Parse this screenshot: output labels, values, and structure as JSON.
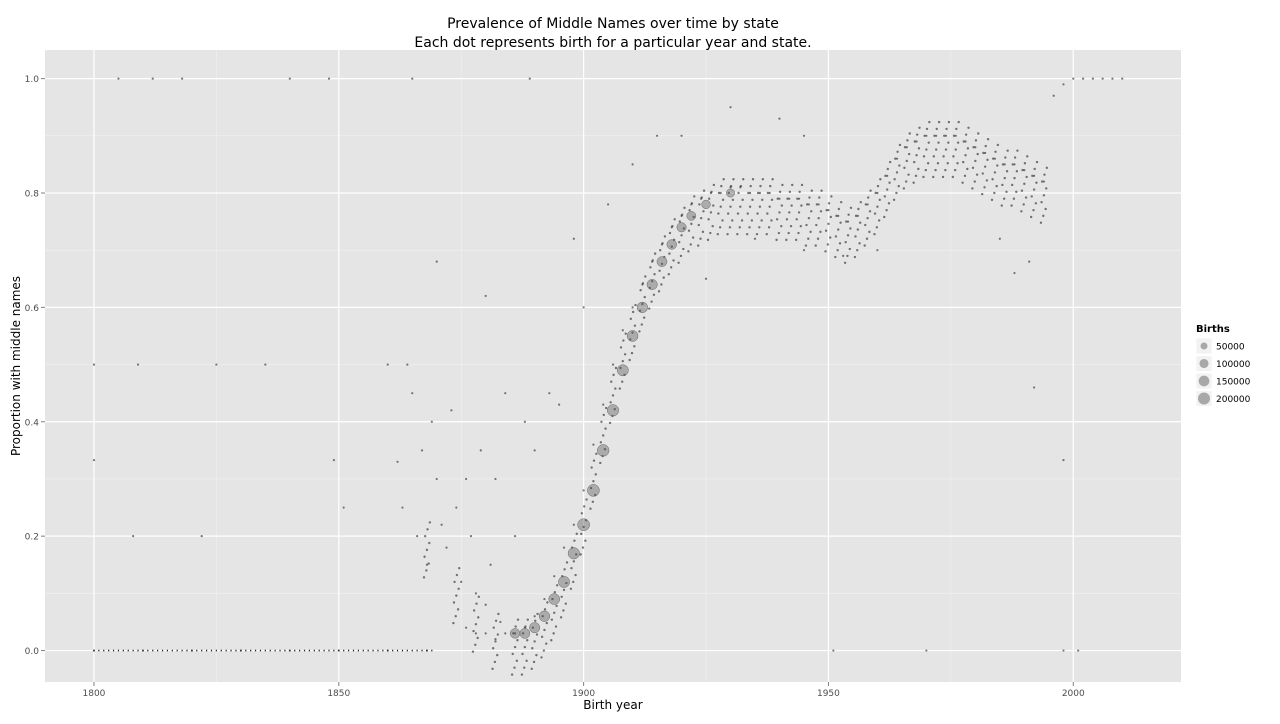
{
  "chart_data": {
    "type": "scatter",
    "title": "Prevalence of Middle Names over time by state",
    "subtitle": "Each dot represents birth for a particular year and state.",
    "xlabel": "Birth year",
    "ylabel": "Proportion with middle names",
    "xlim": [
      1790,
      2022
    ],
    "ylim": [
      -0.055,
      1.05
    ],
    "xticks": [
      1800,
      1850,
      1900,
      1950,
      2000
    ],
    "yticks": [
      0.0,
      0.2,
      0.4,
      0.6,
      0.8,
      1.0
    ],
    "grid": true,
    "legend": {
      "title": "Births",
      "placement": "right",
      "entries": [
        {
          "label": "50000",
          "value": 50000
        },
        {
          "label": "100000",
          "value": 100000
        },
        {
          "label": "150000",
          "value": 150000
        },
        {
          "label": "200000",
          "value": 200000
        }
      ]
    },
    "series": [
      {
        "points": [
          {
            "x": 1800,
            "y": 0.0
          },
          {
            "x": 1810,
            "y": 0.0
          },
          {
            "x": 1820,
            "y": 0.0
          },
          {
            "x": 1830,
            "y": 0.0
          },
          {
            "x": 1840,
            "y": 0.0
          },
          {
            "x": 1850,
            "y": 0.0
          },
          {
            "x": 1860,
            "y": 0.0
          },
          {
            "x": 1868,
            "y": 0.0
          },
          {
            "x": 1805,
            "y": 1.0
          },
          {
            "x": 1812,
            "y": 1.0
          },
          {
            "x": 1818,
            "y": 1.0
          },
          {
            "x": 1840,
            "y": 1.0
          },
          {
            "x": 1848,
            "y": 1.0
          },
          {
            "x": 1865,
            "y": 1.0
          },
          {
            "x": 1889,
            "y": 1.0
          },
          {
            "x": 1800,
            "y": 0.5
          },
          {
            "x": 1809,
            "y": 0.5
          },
          {
            "x": 1825,
            "y": 0.5
          },
          {
            "x": 1835,
            "y": 0.5
          },
          {
            "x": 1860,
            "y": 0.5
          },
          {
            "x": 1800,
            "y": 0.333
          },
          {
            "x": 1849,
            "y": 0.333
          },
          {
            "x": 1998,
            "y": 0.333
          },
          {
            "x": 1808,
            "y": 0.2
          },
          {
            "x": 1822,
            "y": 0.2
          },
          {
            "x": 1851,
            "y": 0.25
          },
          {
            "x": 1862,
            "y": 0.33
          },
          {
            "x": 1863,
            "y": 0.25
          },
          {
            "x": 1864,
            "y": 0.5
          },
          {
            "x": 1865,
            "y": 0.45
          },
          {
            "x": 1866,
            "y": 0.2
          },
          {
            "x": 1867,
            "y": 0.35
          },
          {
            "x": 1868,
            "y": 0.15
          },
          {
            "x": 1869,
            "y": 0.4
          },
          {
            "x": 1870,
            "y": 0.3
          },
          {
            "x": 1871,
            "y": 0.22
          },
          {
            "x": 1872,
            "y": 0.18
          },
          {
            "x": 1873,
            "y": 0.42
          },
          {
            "x": 1874,
            "y": 0.25
          },
          {
            "x": 1875,
            "y": 0.12
          },
          {
            "x": 1876,
            "y": 0.3
          },
          {
            "x": 1877,
            "y": 0.2
          },
          {
            "x": 1878,
            "y": 0.1
          },
          {
            "x": 1879,
            "y": 0.35
          },
          {
            "x": 1880,
            "y": 0.08
          },
          {
            "x": 1881,
            "y": 0.15
          },
          {
            "x": 1882,
            "y": 0.3
          },
          {
            "x": 1883,
            "y": 0.05
          },
          {
            "x": 1884,
            "y": 0.45
          },
          {
            "x": 1886,
            "y": 0.2
          },
          {
            "x": 1888,
            "y": 0.4
          },
          {
            "x": 1890,
            "y": 0.35
          },
          {
            "x": 1893,
            "y": 0.45
          },
          {
            "x": 1895,
            "y": 0.43
          },
          {
            "x": 1876,
            "y": 0.04
          },
          {
            "x": 1878,
            "y": 0.03
          },
          {
            "x": 1880,
            "y": 0.03
          },
          {
            "x": 1882,
            "y": 0.02
          },
          {
            "x": 1884,
            "y": 0.03
          },
          {
            "x": 1886,
            "y": 0.03
          },
          {
            "x": 1888,
            "y": 0.04
          },
          {
            "x": 1890,
            "y": 0.06
          },
          {
            "x": 1892,
            "y": 0.09
          },
          {
            "x": 1894,
            "y": 0.13
          },
          {
            "x": 1896,
            "y": 0.18
          },
          {
            "x": 1898,
            "y": 0.22
          },
          {
            "x": 1900,
            "y": 0.28
          },
          {
            "x": 1902,
            "y": 0.36
          },
          {
            "x": 1904,
            "y": 0.43
          },
          {
            "x": 1906,
            "y": 0.5
          },
          {
            "x": 1908,
            "y": 0.56
          },
          {
            "x": 1910,
            "y": 0.6
          },
          {
            "x": 1912,
            "y": 0.64
          },
          {
            "x": 1914,
            "y": 0.68
          },
          {
            "x": 1916,
            "y": 0.71
          },
          {
            "x": 1918,
            "y": 0.74
          },
          {
            "x": 1920,
            "y": 0.76
          },
          {
            "x": 1922,
            "y": 0.78
          },
          {
            "x": 1924,
            "y": 0.79
          },
          {
            "x": 1926,
            "y": 0.8
          },
          {
            "x": 1928,
            "y": 0.8
          },
          {
            "x": 1930,
            "y": 0.81
          },
          {
            "x": 1932,
            "y": 0.81
          },
          {
            "x": 1934,
            "y": 0.8
          },
          {
            "x": 1936,
            "y": 0.8
          },
          {
            "x": 1938,
            "y": 0.8
          },
          {
            "x": 1940,
            "y": 0.79
          },
          {
            "x": 1942,
            "y": 0.79
          },
          {
            "x": 1944,
            "y": 0.79
          },
          {
            "x": 1946,
            "y": 0.78
          },
          {
            "x": 1948,
            "y": 0.78
          },
          {
            "x": 1950,
            "y": 0.77
          },
          {
            "x": 1952,
            "y": 0.76
          },
          {
            "x": 1954,
            "y": 0.75
          },
          {
            "x": 1956,
            "y": 0.76
          },
          {
            "x": 1958,
            "y": 0.78
          },
          {
            "x": 1960,
            "y": 0.8
          },
          {
            "x": 1962,
            "y": 0.83
          },
          {
            "x": 1964,
            "y": 0.86
          },
          {
            "x": 1966,
            "y": 0.88
          },
          {
            "x": 1968,
            "y": 0.89
          },
          {
            "x": 1970,
            "y": 0.9
          },
          {
            "x": 1972,
            "y": 0.9
          },
          {
            "x": 1974,
            "y": 0.9
          },
          {
            "x": 1976,
            "y": 0.9
          },
          {
            "x": 1978,
            "y": 0.89
          },
          {
            "x": 1980,
            "y": 0.88
          },
          {
            "x": 1982,
            "y": 0.87
          },
          {
            "x": 1984,
            "y": 0.86
          },
          {
            "x": 1986,
            "y": 0.85
          },
          {
            "x": 1988,
            "y": 0.85
          },
          {
            "x": 1990,
            "y": 0.84
          },
          {
            "x": 1992,
            "y": 0.83
          },
          {
            "x": 1994,
            "y": 0.82
          },
          {
            "x": 1996,
            "y": 0.97
          },
          {
            "x": 1998,
            "y": 0.99
          },
          {
            "x": 2000,
            "y": 1.0
          },
          {
            "x": 2002,
            "y": 1.0
          },
          {
            "x": 2004,
            "y": 1.0
          },
          {
            "x": 2006,
            "y": 1.0
          },
          {
            "x": 2008,
            "y": 1.0
          },
          {
            "x": 2010,
            "y": 1.0
          },
          {
            "x": 1920,
            "y": 0.9
          },
          {
            "x": 1930,
            "y": 0.95
          },
          {
            "x": 1940,
            "y": 0.93
          },
          {
            "x": 1945,
            "y": 0.9
          },
          {
            "x": 1925,
            "y": 0.65
          },
          {
            "x": 1935,
            "y": 0.72
          },
          {
            "x": 1945,
            "y": 0.7
          },
          {
            "x": 1953,
            "y": 0.69
          },
          {
            "x": 1960,
            "y": 0.7
          },
          {
            "x": 1985,
            "y": 0.72
          },
          {
            "x": 1988,
            "y": 0.66
          },
          {
            "x": 1991,
            "y": 0.68
          },
          {
            "x": 1992,
            "y": 0.46
          },
          {
            "x": 1900,
            "y": 0.6
          },
          {
            "x": 1898,
            "y": 0.72
          },
          {
            "x": 1905,
            "y": 0.78
          },
          {
            "x": 1910,
            "y": 0.85
          },
          {
            "x": 1915,
            "y": 0.9
          },
          {
            "x": 1880,
            "y": 0.62
          },
          {
            "x": 1870,
            "y": 0.68
          },
          {
            "x": 1951,
            "y": 0.0
          },
          {
            "x": 1970,
            "y": 0.0
          },
          {
            "x": 1998,
            "y": 0.0
          },
          {
            "x": 2001,
            "y": 0.0
          }
        ],
        "trend_band": {
          "x": [
            1868,
            1874,
            1878,
            1882,
            1886,
            1888,
            1890,
            1892,
            1894,
            1896,
            1898,
            1900,
            1902,
            1904,
            1906,
            1908,
            1910,
            1912,
            1914,
            1916,
            1918,
            1920,
            1922,
            1924,
            1926,
            1928,
            1930,
            1932,
            1934,
            1936,
            1938,
            1940,
            1942,
            1944,
            1946,
            1948,
            1950,
            1952,
            1954,
            1956,
            1958,
            1960,
            1962,
            1964,
            1966,
            1968,
            1970,
            1972,
            1974,
            1976,
            1978,
            1980,
            1982,
            1984,
            1986,
            1988,
            1990,
            1992,
            1994
          ],
          "y": [
            0.2,
            0.12,
            0.07,
            0.04,
            0.03,
            0.03,
            0.04,
            0.06,
            0.09,
            0.13,
            0.18,
            0.24,
            0.32,
            0.4,
            0.47,
            0.53,
            0.58,
            0.63,
            0.67,
            0.7,
            0.73,
            0.75,
            0.77,
            0.78,
            0.79,
            0.8,
            0.8,
            0.8,
            0.8,
            0.8,
            0.8,
            0.79,
            0.79,
            0.79,
            0.78,
            0.78,
            0.77,
            0.76,
            0.75,
            0.76,
            0.78,
            0.8,
            0.83,
            0.86,
            0.88,
            0.89,
            0.9,
            0.9,
            0.9,
            0.9,
            0.89,
            0.88,
            0.87,
            0.86,
            0.85,
            0.85,
            0.84,
            0.83,
            0.82
          ]
        },
        "large_births_points": [
          {
            "x": 1886,
            "y": 0.03,
            "births": 120000
          },
          {
            "x": 1888,
            "y": 0.03,
            "births": 130000
          },
          {
            "x": 1890,
            "y": 0.04,
            "births": 140000
          },
          {
            "x": 1892,
            "y": 0.06,
            "births": 150000
          },
          {
            "x": 1894,
            "y": 0.09,
            "births": 160000
          },
          {
            "x": 1896,
            "y": 0.12,
            "births": 170000
          },
          {
            "x": 1898,
            "y": 0.17,
            "births": 180000
          },
          {
            "x": 1900,
            "y": 0.22,
            "births": 200000
          },
          {
            "x": 1902,
            "y": 0.28,
            "births": 200000
          },
          {
            "x": 1904,
            "y": 0.35,
            "births": 190000
          },
          {
            "x": 1906,
            "y": 0.42,
            "births": 180000
          },
          {
            "x": 1908,
            "y": 0.49,
            "births": 170000
          },
          {
            "x": 1910,
            "y": 0.55,
            "births": 160000
          },
          {
            "x": 1912,
            "y": 0.6,
            "births": 150000
          },
          {
            "x": 1914,
            "y": 0.64,
            "births": 140000
          },
          {
            "x": 1916,
            "y": 0.68,
            "births": 130000
          },
          {
            "x": 1918,
            "y": 0.71,
            "births": 120000
          },
          {
            "x": 1920,
            "y": 0.74,
            "births": 110000
          },
          {
            "x": 1922,
            "y": 0.76,
            "births": 100000
          },
          {
            "x": 1925,
            "y": 0.78,
            "births": 90000
          },
          {
            "x": 1930,
            "y": 0.8,
            "births": 80000
          }
        ]
      }
    ]
  }
}
